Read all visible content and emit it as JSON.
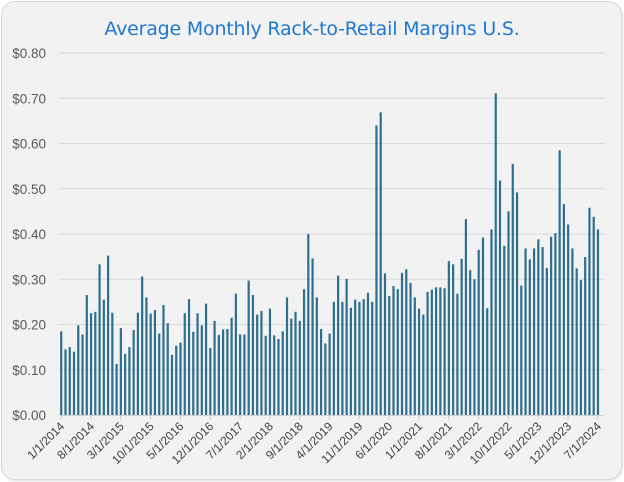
{
  "chart_data": {
    "type": "bar",
    "title": "Average Monthly Rack-to-Retail Margins U.S.",
    "xlabel": "",
    "ylabel": "",
    "ylim": [
      0,
      0.8
    ],
    "y_ticks": [
      0,
      0.1,
      0.2,
      0.3,
      0.4,
      0.5,
      0.6,
      0.7,
      0.8
    ],
    "y_tick_labels": [
      "$0.00",
      "$0.10",
      "$0.20",
      "$0.30",
      "$0.40",
      "$0.50",
      "$0.60",
      "$0.70",
      "$0.80"
    ],
    "grid": true,
    "legend": "none",
    "bar_color": "#2e6e8e",
    "title_color": "#1f78d1",
    "start_month": "1/1/2014",
    "end_month": "7/1/2024",
    "x_tick_labels": [
      "1/1/2014",
      "8/1/2014",
      "3/1/2015",
      "10/1/2015",
      "5/1/2016",
      "12/1/2016",
      "7/1/2017",
      "2/1/2018",
      "9/1/2018",
      "4/1/2019",
      "11/1/2019",
      "6/1/2020",
      "1/1/2021",
      "8/1/2021",
      "3/1/2022",
      "10/1/2022",
      "5/1/2023",
      "12/1/2023",
      "7/1/2024"
    ],
    "x_tick_every_months": 7,
    "values": [
      0.185,
      0.145,
      0.15,
      0.14,
      0.198,
      0.178,
      0.265,
      0.225,
      0.228,
      0.333,
      0.255,
      0.352,
      0.226,
      0.113,
      0.192,
      0.135,
      0.15,
      0.188,
      0.226,
      0.306,
      0.26,
      0.224,
      0.232,
      0.18,
      0.243,
      0.203,
      0.133,
      0.153,
      0.16,
      0.225,
      0.256,
      0.184,
      0.225,
      0.198,
      0.246,
      0.148,
      0.208,
      0.177,
      0.189,
      0.19,
      0.215,
      0.268,
      0.178,
      0.178,
      0.297,
      0.265,
      0.222,
      0.23,
      0.175,
      0.235,
      0.176,
      0.168,
      0.185,
      0.26,
      0.213,
      0.228,
      0.208,
      0.278,
      0.4,
      0.346,
      0.26,
      0.19,
      0.158,
      0.18,
      0.25,
      0.308,
      0.25,
      0.301,
      0.237,
      0.255,
      0.25,
      0.256,
      0.27,
      0.25,
      0.64,
      0.669,
      0.313,
      0.263,
      0.285,
      0.278,
      0.314,
      0.322,
      0.292,
      0.26,
      0.235,
      0.222,
      0.272,
      0.277,
      0.282,
      0.282,
      0.28,
      0.34,
      0.333,
      0.268,
      0.345,
      0.433,
      0.32,
      0.3,
      0.365,
      0.392,
      0.236,
      0.41,
      0.711,
      0.518,
      0.374,
      0.45,
      0.555,
      0.492,
      0.286,
      0.368,
      0.344,
      0.368,
      0.388,
      0.371,
      0.325,
      0.394,
      0.402,
      0.585,
      0.466,
      0.421,
      0.368,
      0.324,
      0.298,
      0.349,
      0.458,
      0.438,
      0.41
    ]
  }
}
